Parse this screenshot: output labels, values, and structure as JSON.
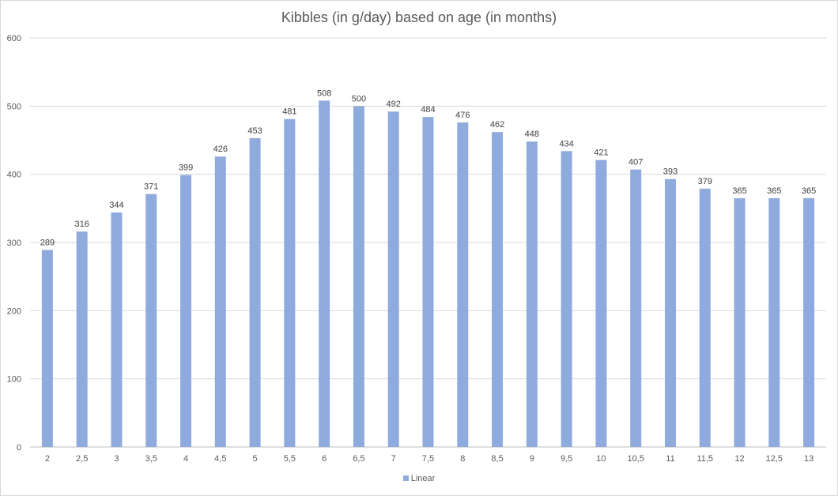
{
  "chart_data": {
    "type": "bar",
    "title": "Kibbles (in g/day) based on age (in months)",
    "xlabel": "",
    "ylabel": "",
    "categories": [
      "2",
      "2,5",
      "3",
      "3,5",
      "4",
      "4,5",
      "5",
      "5,5",
      "6",
      "6,5",
      "7",
      "7,5",
      "8",
      "8,5",
      "9",
      "9,5",
      "10",
      "10,5",
      "11",
      "11,5",
      "12",
      "12,5",
      "13"
    ],
    "series": [
      {
        "name": "Linear",
        "color": "#8faadc",
        "values": [
          289,
          316,
          344,
          371,
          399,
          426,
          453,
          481,
          508,
          500,
          492,
          484,
          476,
          462,
          448,
          434,
          421,
          407,
          393,
          379,
          365,
          365,
          365
        ]
      }
    ],
    "ylim": [
      0,
      600
    ],
    "yticks": [
      0,
      100,
      200,
      300,
      400,
      500,
      600
    ],
    "grid": true,
    "data_labels": true,
    "legend_position": "bottom"
  }
}
